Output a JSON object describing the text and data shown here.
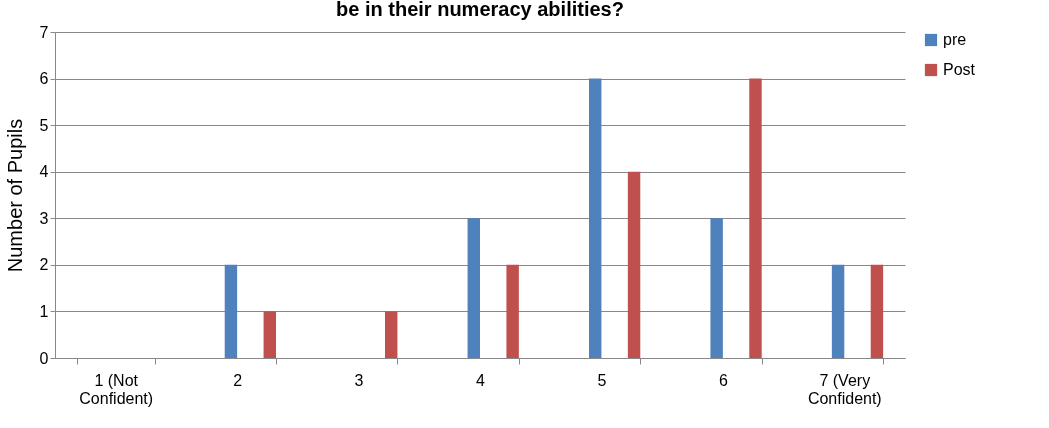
{
  "chart_data": {
    "type": "bar",
    "title": "be in their numeracy abilities?",
    "ylabel": "Number of Pupils",
    "categories": [
      "1 (Not Confident)",
      "2",
      "3",
      "4",
      "5",
      "6",
      "7 (Very Confident)"
    ],
    "series": [
      {
        "name": "pre",
        "color": "#4f81bd",
        "values": [
          0,
          2,
          0,
          3,
          6,
          3,
          2
        ]
      },
      {
        "name": "Post",
        "color": "#c0504d",
        "values": [
          0,
          1,
          1,
          2,
          4,
          6,
          2
        ]
      }
    ],
    "ylim": [
      0,
      7
    ],
    "yticks": [
      0,
      1,
      2,
      3,
      4,
      5,
      6,
      7
    ],
    "grid": "y",
    "legend": "right"
  }
}
